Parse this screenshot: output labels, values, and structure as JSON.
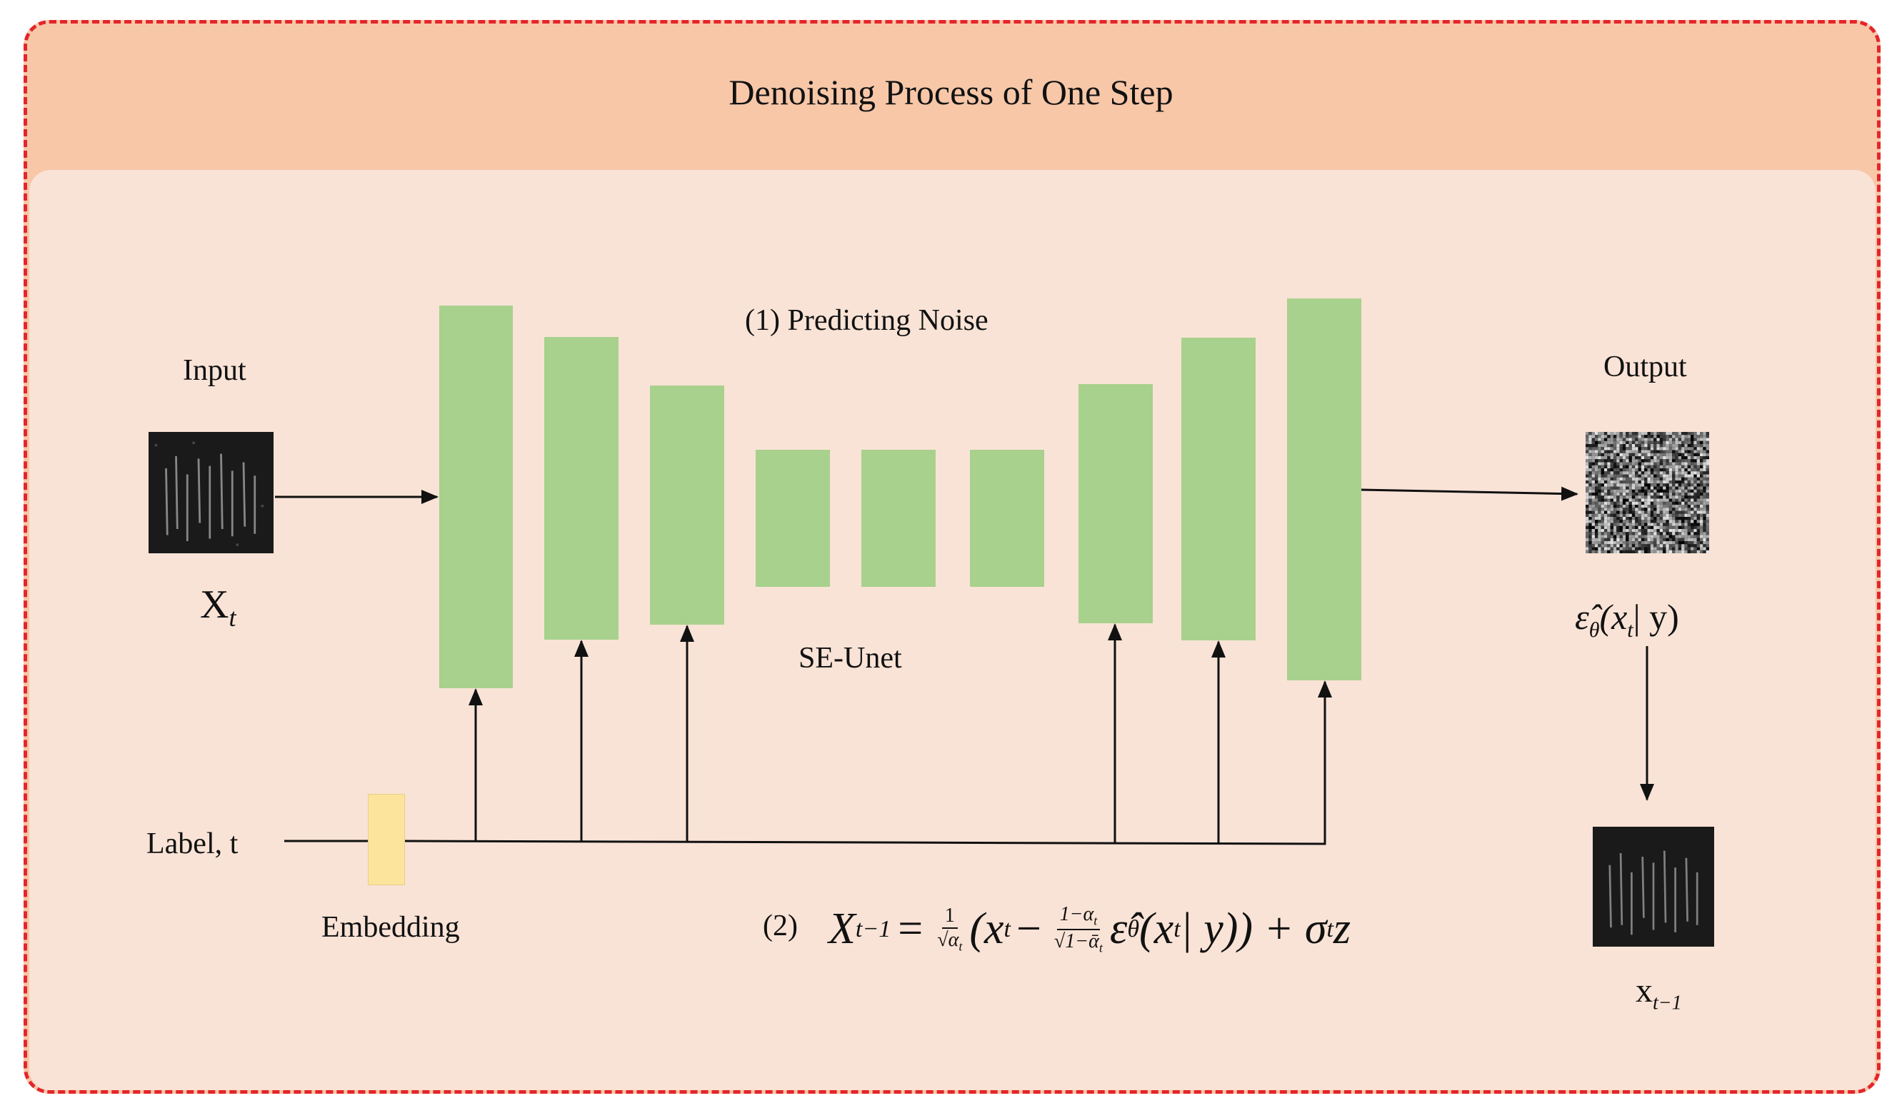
{
  "title": "Denoising Process of One Step",
  "input": {
    "label": "Input",
    "symbol": "X",
    "symbol_sub": "t"
  },
  "output": {
    "label": "Output",
    "symbol_hat": "ε̂",
    "symbol_sub": "θ",
    "symbol_args": "(x",
    "args_sub": "t",
    "args_rest": "| y)"
  },
  "result": {
    "symbol": "x",
    "symbol_sub": "t−1"
  },
  "unet": {
    "step_label": "(1) Predicting Noise",
    "name": "SE-Unet"
  },
  "conditioning": {
    "label": "Label, t",
    "embedding_label": "Embedding"
  },
  "equation": {
    "number": "(2)",
    "lhs": "X",
    "lhs_sub": "t−1",
    "eq": "=",
    "frac1_num": "1",
    "frac1_den": "√α",
    "frac1_den_sub": "t",
    "open": "(x",
    "open_sub": "t",
    "minus": "−",
    "frac2_num": "1−α",
    "frac2_num_sub": "t",
    "frac2_den": "√1−ᾱ",
    "frac2_den_sub": "t",
    "eps": "ε̂",
    "eps_sub": "θ",
    "args": "(x",
    "args_sub": "t",
    "args_rest": " | y)) + σ",
    "sigma_sub": "t",
    "tail": "z"
  },
  "colors": {
    "frame_border": "#e3262a",
    "header_bg": "#f7c7a8",
    "body_bg": "#f9e3d6",
    "block": "#a8d18d",
    "embedding": "#fce49d"
  }
}
